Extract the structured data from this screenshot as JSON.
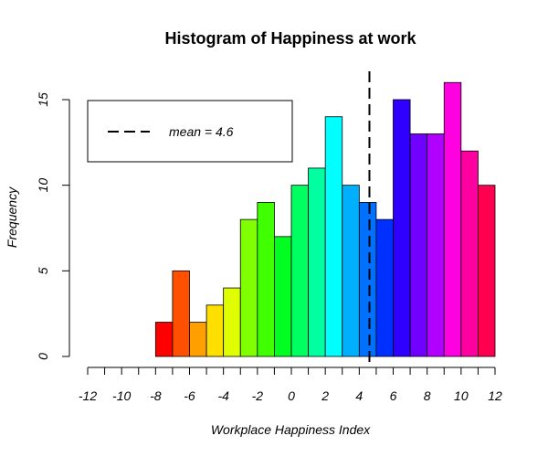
{
  "chart_data": {
    "type": "bar",
    "title": "Histogram of Happiness at work",
    "xlabel": "Workplace Happiness Index",
    "ylabel": "Frequency",
    "xlim": [
      -12,
      12
    ],
    "ylim": [
      0,
      15
    ],
    "x_ticks": [
      -12,
      -10,
      -8,
      -6,
      -4,
      -2,
      0,
      2,
      4,
      6,
      8,
      10,
      12
    ],
    "y_ticks": [
      0,
      5,
      10,
      15
    ],
    "bin_width": 1,
    "bins": [
      {
        "start": -8,
        "end": -7,
        "count": 2,
        "color": "#FF0000"
      },
      {
        "start": -7,
        "end": -6,
        "count": 5,
        "color": "#FF5000"
      },
      {
        "start": -6,
        "end": -5,
        "count": 2,
        "color": "#FFA000"
      },
      {
        "start": -5,
        "end": -4,
        "count": 3,
        "color": "#FFDF00"
      },
      {
        "start": -4,
        "end": -3,
        "count": 4,
        "color": "#DFFF00"
      },
      {
        "start": -3,
        "end": -2,
        "count": 8,
        "color": "#80FF00"
      },
      {
        "start": -2,
        "end": -1,
        "count": 9,
        "color": "#40FF00"
      },
      {
        "start": -1,
        "end": 0,
        "count": 7,
        "color": "#00FF20"
      },
      {
        "start": 0,
        "end": 1,
        "count": 10,
        "color": "#00FF60"
      },
      {
        "start": 1,
        "end": 2,
        "count": 11,
        "color": "#00FFA0"
      },
      {
        "start": 2,
        "end": 3,
        "count": 14,
        "color": "#00FFFF"
      },
      {
        "start": 3,
        "end": 4,
        "count": 10,
        "color": "#00B0FF"
      },
      {
        "start": 4,
        "end": 5,
        "count": 9,
        "color": "#0070FF"
      },
      {
        "start": 5,
        "end": 6,
        "count": 8,
        "color": "#0030FF"
      },
      {
        "start": 6,
        "end": 7,
        "count": 15,
        "color": "#3000FF"
      },
      {
        "start": 7,
        "end": 8,
        "count": 13,
        "color": "#7000FF"
      },
      {
        "start": 8,
        "end": 9,
        "count": 13,
        "color": "#B000FF"
      },
      {
        "start": 9,
        "end": 10,
        "count": 16,
        "color": "#FF00E0"
      },
      {
        "start": 10,
        "end": 11,
        "count": 12,
        "color": "#FF00A0"
      },
      {
        "start": 11,
        "end": 12,
        "count": 10,
        "color": "#FF0050"
      }
    ],
    "mean": 4.6,
    "mean_line_style": "dashed",
    "legend": {
      "position": "top-left",
      "entries": [
        {
          "label": "mean = 4.6",
          "line_style": "dashed"
        }
      ]
    },
    "grid": false
  }
}
